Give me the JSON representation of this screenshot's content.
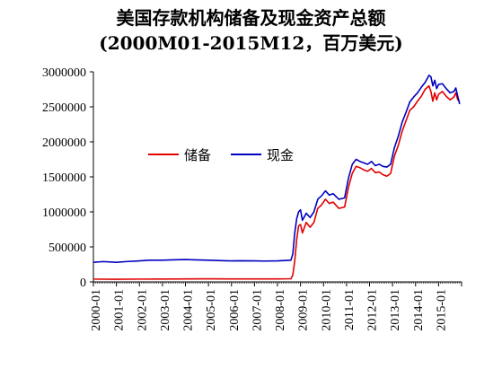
{
  "chart_data": {
    "type": "line",
    "title": "美国存款机构储备及现金资产总额",
    "subtitle": "(2000M01-2015M12，百万美元)",
    "xlabel": "",
    "ylabel": "",
    "ylim": [
      0,
      3000000
    ],
    "yticks": [
      "0",
      "500000",
      "1000000",
      "1500000",
      "2000000",
      "2500000",
      "3000000"
    ],
    "xticks": [
      "2000-01",
      "2001-01",
      "2002-01",
      "2003-01",
      "2004-01",
      "2005-01",
      "2006-01",
      "2007-01",
      "2008-01",
      "2009-01",
      "2010-01",
      "2011-01",
      "2012-01",
      "2013-01",
      "2014-01",
      "2015-01"
    ],
    "legend": "top-left",
    "grid": false,
    "x_start": "2000-01",
    "x_end": "2015-12",
    "series": [
      {
        "name": "储备",
        "color": "#e00000",
        "points": [
          [
            "2000-01",
            40000
          ],
          [
            "2001-01",
            38000
          ],
          [
            "2002-01",
            40000
          ],
          [
            "2003-01",
            41000
          ],
          [
            "2004-01",
            43000
          ],
          [
            "2005-01",
            44000
          ],
          [
            "2006-01",
            42000
          ],
          [
            "2007-01",
            42000
          ],
          [
            "2008-01",
            43000
          ],
          [
            "2008-08",
            45000
          ],
          [
            "2008-09",
            100000
          ],
          [
            "2008-10",
            300000
          ],
          [
            "2008-11",
            600000
          ],
          [
            "2008-12",
            800000
          ],
          [
            "2009-01",
            820000
          ],
          [
            "2009-02",
            700000
          ],
          [
            "2009-04",
            850000
          ],
          [
            "2009-06",
            780000
          ],
          [
            "2009-08",
            850000
          ],
          [
            "2009-10",
            1050000
          ],
          [
            "2009-12",
            1100000
          ],
          [
            "2010-02",
            1180000
          ],
          [
            "2010-04",
            1120000
          ],
          [
            "2010-06",
            1140000
          ],
          [
            "2010-09",
            1050000
          ],
          [
            "2010-12",
            1070000
          ],
          [
            "2011-02",
            1350000
          ],
          [
            "2011-04",
            1550000
          ],
          [
            "2011-06",
            1650000
          ],
          [
            "2011-08",
            1630000
          ],
          [
            "2011-10",
            1600000
          ],
          [
            "2011-12",
            1580000
          ],
          [
            "2012-02",
            1620000
          ],
          [
            "2012-04",
            1560000
          ],
          [
            "2012-06",
            1570000
          ],
          [
            "2012-08",
            1530000
          ],
          [
            "2012-10",
            1510000
          ],
          [
            "2012-12",
            1550000
          ],
          [
            "2013-02",
            1800000
          ],
          [
            "2013-04",
            1950000
          ],
          [
            "2013-06",
            2150000
          ],
          [
            "2013-08",
            2300000
          ],
          [
            "2013-10",
            2450000
          ],
          [
            "2013-12",
            2500000
          ],
          [
            "2014-02",
            2580000
          ],
          [
            "2014-04",
            2650000
          ],
          [
            "2014-06",
            2750000
          ],
          [
            "2014-08",
            2800000
          ],
          [
            "2014-09",
            2720000
          ],
          [
            "2014-10",
            2580000
          ],
          [
            "2014-11",
            2700000
          ],
          [
            "2014-12",
            2600000
          ],
          [
            "2015-01",
            2680000
          ],
          [
            "2015-03",
            2720000
          ],
          [
            "2015-05",
            2650000
          ],
          [
            "2015-07",
            2600000
          ],
          [
            "2015-09",
            2640000
          ],
          [
            "2015-10",
            2700000
          ],
          [
            "2015-11",
            2600000
          ],
          [
            "2015-12",
            2580000
          ]
        ]
      },
      {
        "name": "现金",
        "color": "#0000c0",
        "points": [
          [
            "2000-01",
            280000
          ],
          [
            "2000-06",
            290000
          ],
          [
            "2001-01",
            280000
          ],
          [
            "2001-06",
            290000
          ],
          [
            "2002-01",
            300000
          ],
          [
            "2002-06",
            310000
          ],
          [
            "2003-01",
            310000
          ],
          [
            "2003-06",
            315000
          ],
          [
            "2004-01",
            320000
          ],
          [
            "2004-06",
            315000
          ],
          [
            "2005-01",
            310000
          ],
          [
            "2005-06",
            305000
          ],
          [
            "2006-01",
            300000
          ],
          [
            "2006-06",
            302000
          ],
          [
            "2007-01",
            300000
          ],
          [
            "2007-06",
            298000
          ],
          [
            "2008-01",
            300000
          ],
          [
            "2008-08",
            310000
          ],
          [
            "2008-09",
            400000
          ],
          [
            "2008-10",
            700000
          ],
          [
            "2008-11",
            900000
          ],
          [
            "2008-12",
            1000000
          ],
          [
            "2009-01",
            1030000
          ],
          [
            "2009-02",
            880000
          ],
          [
            "2009-04",
            980000
          ],
          [
            "2009-06",
            920000
          ],
          [
            "2009-08",
            1000000
          ],
          [
            "2009-10",
            1180000
          ],
          [
            "2009-12",
            1230000
          ],
          [
            "2010-02",
            1300000
          ],
          [
            "2010-04",
            1240000
          ],
          [
            "2010-06",
            1260000
          ],
          [
            "2010-09",
            1180000
          ],
          [
            "2010-12",
            1200000
          ],
          [
            "2011-02",
            1480000
          ],
          [
            "2011-04",
            1680000
          ],
          [
            "2011-06",
            1750000
          ],
          [
            "2011-08",
            1720000
          ],
          [
            "2011-10",
            1700000
          ],
          [
            "2011-12",
            1680000
          ],
          [
            "2012-02",
            1720000
          ],
          [
            "2012-04",
            1660000
          ],
          [
            "2012-06",
            1680000
          ],
          [
            "2012-08",
            1650000
          ],
          [
            "2012-10",
            1640000
          ],
          [
            "2012-12",
            1680000
          ],
          [
            "2013-02",
            1920000
          ],
          [
            "2013-04",
            2080000
          ],
          [
            "2013-06",
            2280000
          ],
          [
            "2013-08",
            2420000
          ],
          [
            "2013-10",
            2570000
          ],
          [
            "2013-12",
            2640000
          ],
          [
            "2014-02",
            2700000
          ],
          [
            "2014-04",
            2780000
          ],
          [
            "2014-06",
            2850000
          ],
          [
            "2014-08",
            2950000
          ],
          [
            "2014-09",
            2930000
          ],
          [
            "2014-10",
            2800000
          ],
          [
            "2014-11",
            2880000
          ],
          [
            "2014-12",
            2760000
          ],
          [
            "2015-01",
            2820000
          ],
          [
            "2015-03",
            2830000
          ],
          [
            "2015-05",
            2760000
          ],
          [
            "2015-07",
            2700000
          ],
          [
            "2015-09",
            2720000
          ],
          [
            "2015-10",
            2770000
          ],
          [
            "2015-11",
            2650000
          ],
          [
            "2015-12",
            2540000
          ]
        ]
      }
    ]
  }
}
